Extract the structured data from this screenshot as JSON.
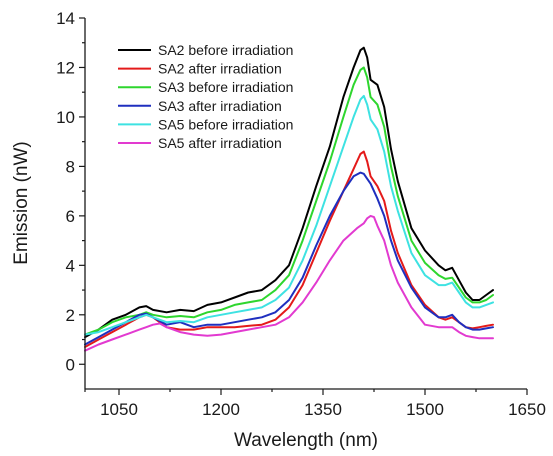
{
  "chart_data": {
    "type": "line",
    "title": "",
    "xlabel": "Wavelength (nm)",
    "ylabel": "Emission (nW)",
    "xlim": [
      1000,
      1650
    ],
    "ylim": [
      -1,
      14
    ],
    "xticks": [
      1050,
      1200,
      1350,
      1500,
      1650
    ],
    "yticks": [
      0,
      2,
      4,
      6,
      8,
      10,
      12,
      14
    ],
    "grid": false,
    "legend_position": "top-left",
    "series": [
      {
        "name": "SA2 before irradiation",
        "color": "#000000",
        "x": [
          1000,
          1020,
          1040,
          1060,
          1080,
          1090,
          1100,
          1120,
          1140,
          1160,
          1180,
          1200,
          1220,
          1240,
          1260,
          1280,
          1300,
          1320,
          1340,
          1360,
          1380,
          1395,
          1405,
          1410,
          1415,
          1420,
          1430,
          1440,
          1450,
          1460,
          1480,
          1500,
          1520,
          1530,
          1540,
          1550,
          1560,
          1570,
          1580,
          1590,
          1600
        ],
        "y": [
          1.1,
          1.4,
          1.8,
          2.0,
          2.3,
          2.35,
          2.2,
          2.1,
          2.2,
          2.15,
          2.4,
          2.5,
          2.7,
          2.9,
          3.0,
          3.4,
          4.0,
          5.5,
          7.2,
          8.8,
          10.8,
          12.0,
          12.7,
          12.8,
          12.4,
          11.5,
          11.3,
          10.4,
          8.7,
          7.4,
          5.5,
          4.6,
          4.0,
          3.8,
          3.9,
          3.4,
          2.9,
          2.6,
          2.6,
          2.8,
          3.0
        ]
      },
      {
        "name": "SA2 after irradiation",
        "color": "#e41a1a",
        "x": [
          1000,
          1020,
          1040,
          1060,
          1080,
          1090,
          1100,
          1120,
          1140,
          1160,
          1180,
          1200,
          1220,
          1240,
          1260,
          1280,
          1300,
          1320,
          1340,
          1360,
          1380,
          1395,
          1405,
          1410,
          1415,
          1420,
          1430,
          1440,
          1450,
          1460,
          1480,
          1500,
          1520,
          1530,
          1540,
          1550,
          1560,
          1570,
          1580,
          1590,
          1600
        ],
        "y": [
          0.7,
          1.0,
          1.3,
          1.6,
          1.9,
          2.0,
          1.9,
          1.5,
          1.4,
          1.4,
          1.5,
          1.5,
          1.5,
          1.55,
          1.6,
          1.8,
          2.3,
          3.2,
          4.5,
          5.8,
          7.0,
          7.9,
          8.5,
          8.6,
          8.2,
          7.6,
          7.2,
          6.6,
          5.4,
          4.5,
          3.2,
          2.4,
          1.9,
          1.8,
          1.9,
          1.7,
          1.5,
          1.45,
          1.5,
          1.55,
          1.6
        ]
      },
      {
        "name": "SA3 before irradiation",
        "color": "#2ed62e",
        "x": [
          1000,
          1020,
          1040,
          1060,
          1080,
          1090,
          1100,
          1120,
          1140,
          1160,
          1180,
          1200,
          1220,
          1240,
          1260,
          1280,
          1300,
          1320,
          1340,
          1360,
          1380,
          1395,
          1405,
          1410,
          1415,
          1420,
          1430,
          1440,
          1450,
          1460,
          1480,
          1500,
          1520,
          1530,
          1540,
          1550,
          1560,
          1570,
          1580,
          1590,
          1600
        ],
        "y": [
          1.2,
          1.4,
          1.7,
          1.9,
          2.0,
          2.1,
          2.0,
          1.9,
          1.95,
          1.9,
          2.1,
          2.2,
          2.4,
          2.5,
          2.6,
          3.0,
          3.6,
          5.0,
          6.6,
          8.2,
          10.0,
          11.3,
          11.9,
          12.0,
          11.6,
          10.8,
          10.5,
          9.6,
          8.0,
          6.8,
          5.0,
          4.1,
          3.6,
          3.45,
          3.5,
          3.1,
          2.7,
          2.5,
          2.5,
          2.6,
          2.8
        ]
      },
      {
        "name": "SA3 after irradiation",
        "color": "#1f2fbf",
        "x": [
          1000,
          1020,
          1040,
          1060,
          1080,
          1090,
          1100,
          1120,
          1140,
          1160,
          1180,
          1200,
          1220,
          1240,
          1260,
          1280,
          1300,
          1320,
          1340,
          1360,
          1380,
          1395,
          1405,
          1410,
          1415,
          1420,
          1430,
          1440,
          1450,
          1460,
          1480,
          1500,
          1520,
          1530,
          1540,
          1550,
          1560,
          1570,
          1580,
          1590,
          1600
        ],
        "y": [
          0.8,
          1.1,
          1.4,
          1.7,
          2.0,
          2.05,
          1.9,
          1.6,
          1.7,
          1.5,
          1.6,
          1.6,
          1.7,
          1.8,
          1.9,
          2.1,
          2.6,
          3.5,
          4.8,
          6.0,
          7.0,
          7.6,
          7.75,
          7.7,
          7.5,
          7.3,
          6.7,
          6.0,
          5.0,
          4.2,
          3.1,
          2.3,
          1.9,
          1.9,
          2.0,
          1.7,
          1.5,
          1.4,
          1.4,
          1.45,
          1.5
        ]
      },
      {
        "name": "SA5 before irradiation",
        "color": "#3ee2e2",
        "x": [
          1000,
          1020,
          1040,
          1060,
          1080,
          1090,
          1100,
          1120,
          1140,
          1160,
          1180,
          1200,
          1220,
          1240,
          1260,
          1280,
          1300,
          1320,
          1340,
          1360,
          1380,
          1395,
          1405,
          1410,
          1415,
          1420,
          1430,
          1440,
          1450,
          1460,
          1480,
          1500,
          1520,
          1530,
          1540,
          1550,
          1560,
          1570,
          1580,
          1590,
          1600
        ],
        "y": [
          1.2,
          1.3,
          1.5,
          1.7,
          1.9,
          2.0,
          1.9,
          1.7,
          1.75,
          1.7,
          1.9,
          2.0,
          2.1,
          2.2,
          2.3,
          2.6,
          3.1,
          4.2,
          5.6,
          7.2,
          8.8,
          10.0,
          10.7,
          10.85,
          10.5,
          9.9,
          9.5,
          8.6,
          7.2,
          6.2,
          4.5,
          3.6,
          3.2,
          3.2,
          3.3,
          2.9,
          2.5,
          2.3,
          2.3,
          2.4,
          2.5
        ]
      },
      {
        "name": "SA5 after irradiation",
        "color": "#e23ad0",
        "x": [
          1000,
          1020,
          1040,
          1060,
          1080,
          1090,
          1100,
          1110,
          1120,
          1140,
          1160,
          1180,
          1200,
          1220,
          1240,
          1260,
          1280,
          1300,
          1320,
          1340,
          1360,
          1380,
          1400,
          1410,
          1415,
          1420,
          1425,
          1430,
          1440,
          1450,
          1460,
          1480,
          1500,
          1520,
          1530,
          1540,
          1550,
          1560,
          1570,
          1580,
          1590,
          1600
        ],
        "y": [
          0.55,
          0.8,
          1.0,
          1.2,
          1.4,
          1.5,
          1.6,
          1.65,
          1.5,
          1.3,
          1.2,
          1.15,
          1.2,
          1.3,
          1.4,
          1.5,
          1.6,
          1.9,
          2.5,
          3.3,
          4.2,
          5.0,
          5.5,
          5.7,
          5.9,
          6.0,
          5.95,
          5.6,
          5.0,
          4.0,
          3.3,
          2.3,
          1.6,
          1.5,
          1.5,
          1.5,
          1.3,
          1.15,
          1.1,
          1.05,
          1.05,
          1.05
        ]
      }
    ]
  }
}
